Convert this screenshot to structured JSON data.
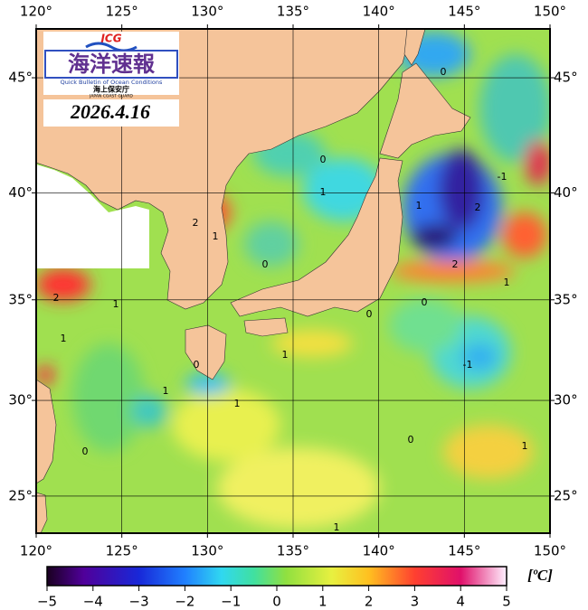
{
  "logo": {
    "badge": "JCG",
    "title": "海洋速報",
    "subtitle": "Quick Bulletin of Ocean Conditions",
    "agency": "海上保安庁",
    "agency_en": "JAPAN COAST GUARD"
  },
  "date": "2026.4.16",
  "map": {
    "lon_range": [
      120,
      150
    ],
    "lat_range": [
      23,
      47
    ],
    "lon_ticks": [
      {
        "value": 120,
        "label": "120°"
      },
      {
        "value": 125,
        "label": "125°"
      },
      {
        "value": 130,
        "label": "130°"
      },
      {
        "value": 135,
        "label": "135°"
      },
      {
        "value": 140,
        "label": "140°"
      },
      {
        "value": 145,
        "label": "145°"
      },
      {
        "value": 150,
        "label": "150°"
      }
    ],
    "lat_ticks": [
      {
        "value": 25,
        "label": "25°"
      },
      {
        "value": 30,
        "label": "30°"
      },
      {
        "value": 35,
        "label": "35°"
      },
      {
        "value": 40,
        "label": "40°"
      },
      {
        "value": 45,
        "label": "45°"
      }
    ],
    "grid": true
  },
  "contour_labels": [
    "0",
    "0",
    "1",
    "1",
    "2",
    "2",
    "1",
    "0",
    "2",
    "1",
    "0",
    "2",
    "1",
    "1",
    "0",
    "1",
    "-1",
    "1",
    "1",
    "0",
    "0",
    "1",
    "1",
    "0",
    "-1"
  ],
  "colorbar": {
    "range": [
      -5,
      5
    ],
    "ticks": [
      {
        "value": -5,
        "label": "−5"
      },
      {
        "value": -4,
        "label": "−4"
      },
      {
        "value": -3,
        "label": "−3"
      },
      {
        "value": -2,
        "label": "−2"
      },
      {
        "value": -1,
        "label": "−1"
      },
      0,
      1,
      2,
      3,
      4,
      5
    ],
    "unit": "[ºC]"
  }
}
